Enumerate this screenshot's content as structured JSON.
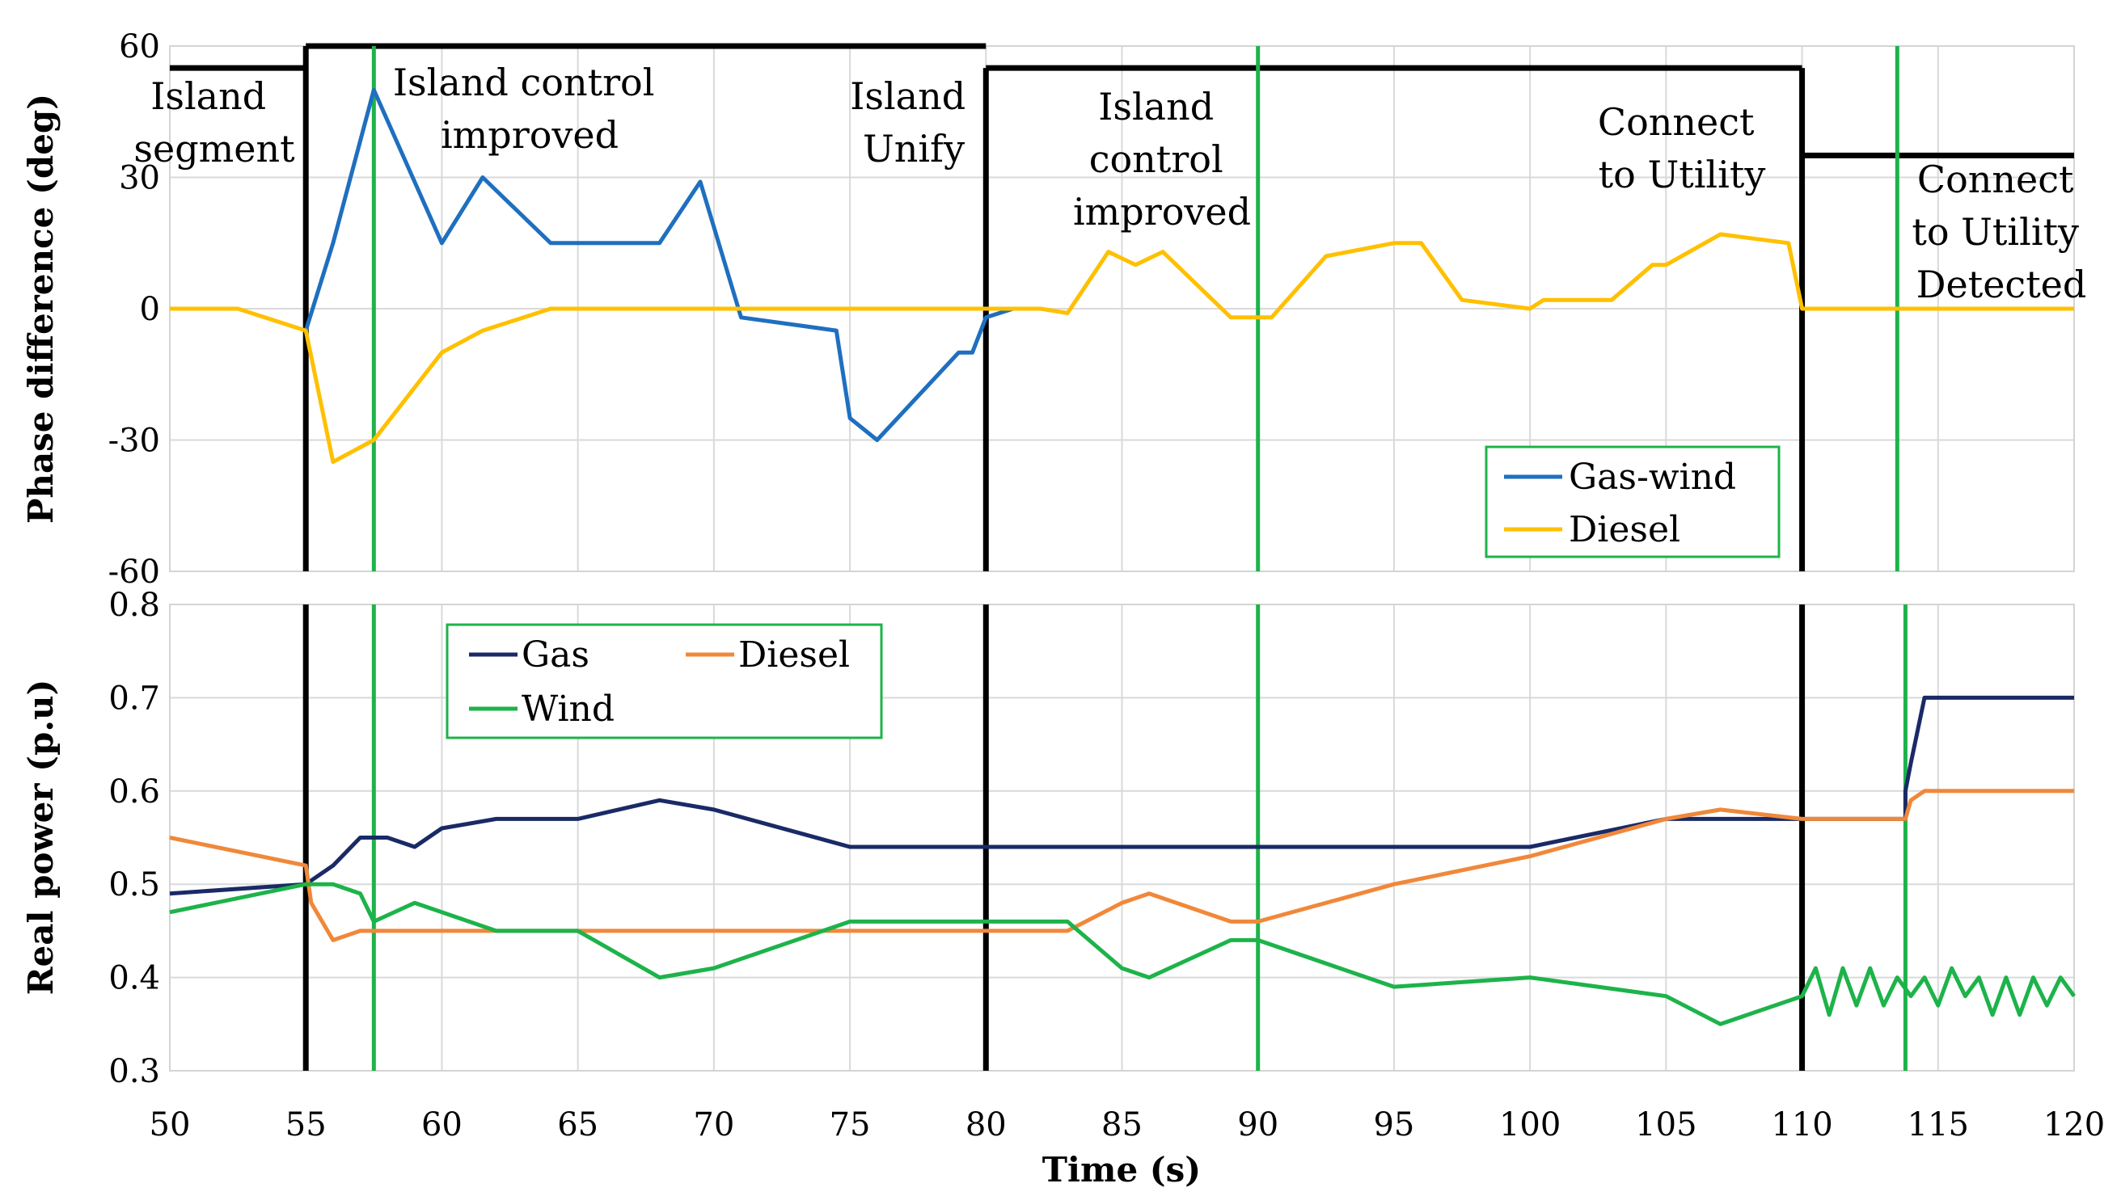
{
  "chart_data": [
    {
      "type": "line",
      "ylabel": "Phase difference (deg)",
      "xlim": [
        50,
        120
      ],
      "ylim": [
        -60,
        60
      ],
      "x_ticks": [
        50,
        55,
        60,
        65,
        70,
        75,
        80,
        85,
        90,
        95,
        100,
        105,
        110,
        115,
        120
      ],
      "y_tick_labels": [
        "60",
        "30",
        "0",
        "-30",
        "-60"
      ],
      "y_tick_values": [
        60,
        30,
        0,
        -30,
        -60
      ],
      "grid": true,
      "legend": [
        "Gas-wind",
        "Diesel"
      ],
      "series": [
        {
          "name": "Gas-wind",
          "color": "#1f6fbf",
          "x": [
            55,
            56,
            57.5,
            60,
            61.5,
            64,
            66,
            68,
            69.5,
            71,
            74.5,
            75,
            76,
            79,
            79.5,
            80,
            81,
            82
          ],
          "y": [
            -5,
            15,
            50,
            15,
            30,
            15,
            15,
            15,
            29,
            -2,
            -5,
            -25,
            -30,
            -10,
            -10,
            -2,
            0,
            0
          ]
        },
        {
          "name": "Diesel",
          "color": "#ffc000",
          "x": [
            50,
            52.5,
            55,
            56,
            57.5,
            60,
            61.5,
            64,
            80,
            82,
            83,
            84.5,
            85.5,
            86.5,
            89,
            90.5,
            92.5,
            95,
            96,
            97.5,
            100,
            100.5,
            103,
            104.5,
            105,
            107,
            109.5,
            110,
            120
          ],
          "y": [
            0,
            0,
            -5,
            -35,
            -30,
            -10,
            -5,
            0,
            0,
            0,
            -1,
            13,
            10,
            13,
            -2,
            -2,
            12,
            15,
            15,
            2,
            0,
            2,
            2,
            10,
            10,
            17,
            15,
            0,
            0
          ]
        }
      ],
      "vertical_lines": [
        {
          "x": 55,
          "kind": "event",
          "color": "#000000"
        },
        {
          "x": 57.5,
          "kind": "detect",
          "color": "#1db34a"
        },
        {
          "x": 80,
          "kind": "event",
          "color": "#000000"
        },
        {
          "x": 90,
          "kind": "detect",
          "color": "#1db34a"
        },
        {
          "x": 110,
          "kind": "event",
          "color": "#000000"
        },
        {
          "x": 113.5,
          "kind": "detect",
          "color": "#1db34a"
        }
      ],
      "state_segments": [
        {
          "x0": 50,
          "x1": 55,
          "y": 55
        },
        {
          "x0": 55,
          "x1": 80,
          "y": 60
        },
        {
          "x0": 80,
          "x1": 110,
          "y": 55
        },
        {
          "x0": 110,
          "x1": 120,
          "y": 35
        }
      ],
      "annotations": [
        {
          "lines": [
            "Island",
            "segment"
          ]
        },
        {
          "lines": [
            "Island control",
            "improved"
          ]
        },
        {
          "lines": [
            "Island",
            "Unify"
          ]
        },
        {
          "lines": [
            "Island",
            "control",
            "improved"
          ]
        },
        {
          "lines": [
            "Connect",
            "to Utility"
          ]
        },
        {
          "lines": [
            "Connect",
            "to Utility",
            "Detected"
          ]
        }
      ]
    },
    {
      "type": "line",
      "ylabel": "Real power (p.u)",
      "xlabel": "Time (s)",
      "xlim": [
        50,
        120
      ],
      "ylim": [
        0.3,
        0.8
      ],
      "x_ticks": [
        50,
        55,
        60,
        65,
        70,
        75,
        80,
        85,
        90,
        95,
        100,
        105,
        110,
        115,
        120
      ],
      "y_tick_labels": [
        "0.8",
        "0.7",
        "0.6",
        "0.5",
        "0.4",
        "0.3"
      ],
      "y_tick_values": [
        0.8,
        0.7,
        0.6,
        0.5,
        0.4,
        0.3
      ],
      "grid": true,
      "legend": [
        "Gas",
        "Diesel",
        "Wind"
      ],
      "series": [
        {
          "name": "Gas",
          "color": "#1a2a66",
          "x": [
            50,
            55,
            56,
            57,
            58,
            59,
            60,
            62,
            65,
            68,
            70,
            75,
            80,
            85,
            90,
            95,
            100,
            105,
            110,
            113.8,
            113.8,
            114,
            114.5,
            120
          ],
          "y": [
            0.49,
            0.5,
            0.52,
            0.55,
            0.55,
            0.54,
            0.56,
            0.57,
            0.57,
            0.59,
            0.58,
            0.54,
            0.54,
            0.54,
            0.54,
            0.54,
            0.54,
            0.57,
            0.57,
            0.57,
            0.6,
            0.63,
            0.7,
            0.7
          ]
        },
        {
          "name": "Diesel",
          "color": "#f0883a",
          "x": [
            50,
            55,
            55.2,
            56,
            57,
            60,
            65,
            70,
            75,
            80,
            83,
            85,
            86,
            89,
            90,
            95,
            100,
            105,
            107,
            110,
            113.8,
            114,
            114.5,
            120
          ],
          "y": [
            0.55,
            0.52,
            0.48,
            0.44,
            0.45,
            0.45,
            0.45,
            0.45,
            0.45,
            0.45,
            0.45,
            0.48,
            0.49,
            0.46,
            0.46,
            0.5,
            0.53,
            0.57,
            0.58,
            0.57,
            0.57,
            0.59,
            0.6,
            0.6
          ]
        },
        {
          "name": "Wind",
          "color": "#1db34a",
          "x": [
            50,
            55,
            56,
            57,
            57.5,
            59,
            62,
            65,
            68,
            70,
            75,
            80,
            83,
            85,
            86,
            89,
            90,
            95,
            100,
            105,
            107,
            110,
            110.5,
            111,
            111.5,
            112,
            112.5,
            113,
            113.5,
            114,
            114.5,
            115,
            115.5,
            116,
            116.5,
            117,
            117.5,
            118,
            118.5,
            119,
            119.5,
            120
          ],
          "y": [
            0.47,
            0.5,
            0.5,
            0.49,
            0.46,
            0.48,
            0.45,
            0.45,
            0.4,
            0.41,
            0.46,
            0.46,
            0.46,
            0.41,
            0.4,
            0.44,
            0.44,
            0.39,
            0.4,
            0.38,
            0.35,
            0.38,
            0.41,
            0.36,
            0.41,
            0.37,
            0.41,
            0.37,
            0.4,
            0.38,
            0.4,
            0.37,
            0.41,
            0.38,
            0.4,
            0.36,
            0.4,
            0.36,
            0.4,
            0.37,
            0.4,
            0.38
          ]
        }
      ],
      "vertical_lines": [
        {
          "x": 55,
          "kind": "event",
          "color": "#000000"
        },
        {
          "x": 57.5,
          "kind": "detect",
          "color": "#1db34a"
        },
        {
          "x": 80,
          "kind": "event",
          "color": "#000000"
        },
        {
          "x": 90,
          "kind": "detect",
          "color": "#1db34a"
        },
        {
          "x": 110,
          "kind": "event",
          "color": "#000000"
        },
        {
          "x": 113.8,
          "kind": "detect",
          "color": "#1db34a"
        }
      ]
    }
  ]
}
